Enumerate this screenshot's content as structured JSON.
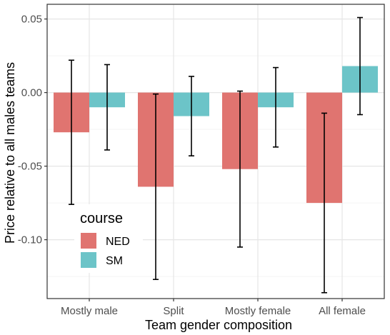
{
  "chart_data": {
    "type": "bar",
    "categories": [
      "Mostly male",
      "Split",
      "Mostly female",
      "All female"
    ],
    "series": [
      {
        "name": "NED",
        "color": "#E07470",
        "values": [
          -0.027,
          -0.064,
          -0.052,
          -0.075
        ],
        "error_low": [
          -0.076,
          -0.127,
          -0.105,
          -0.136
        ],
        "error_high": [
          0.022,
          -0.001,
          0.001,
          -0.014
        ]
      },
      {
        "name": "SM",
        "color": "#6CC4C8",
        "values": [
          -0.01,
          -0.016,
          -0.01,
          0.018
        ],
        "error_low": [
          -0.039,
          -0.043,
          -0.037,
          -0.015
        ],
        "error_high": [
          0.019,
          0.011,
          0.017,
          0.051
        ]
      }
    ],
    "xlabel": "Team gender composition",
    "ylabel": "Price relative to all males teams",
    "ylim": [
      -0.14,
      0.06
    ],
    "yticks": [
      0.05,
      0.0,
      -0.05,
      -0.1
    ],
    "ytick_labels": [
      "0.05",
      "0.00",
      "-0.05",
      "-0.10"
    ],
    "grid": true,
    "legend": {
      "title": "course",
      "placement": "bottom-left"
    }
  }
}
